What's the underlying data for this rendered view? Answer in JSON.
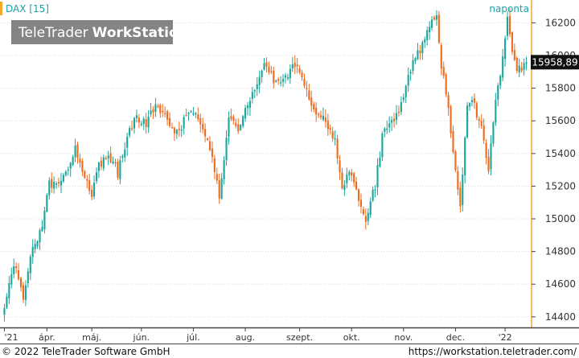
{
  "chart_data": {
    "type": "candlestick",
    "title": "DAX [15]",
    "frequency": "naponta",
    "last_value_label": "15958,89",
    "last_value": 15958.89,
    "ylim": [
      14350,
      16320
    ],
    "yticks": [
      {
        "value": 14400,
        "label": "14400"
      },
      {
        "value": 14600,
        "label": "14600"
      },
      {
        "value": 14800,
        "label": "14800"
      },
      {
        "value": 15000,
        "label": "15000"
      },
      {
        "value": 15200,
        "label": "15200"
      },
      {
        "value": 15400,
        "label": "15400"
      },
      {
        "value": 15600,
        "label": "15600"
      },
      {
        "value": 15800,
        "label": "15800"
      },
      {
        "value": 16000,
        "label": "16000"
      },
      {
        "value": 16200,
        "label": "16200"
      }
    ],
    "xticks": [
      {
        "index": 0,
        "label": "'21"
      },
      {
        "index": 18,
        "label": "ápr."
      },
      {
        "index": 37,
        "label": "máj."
      },
      {
        "index": 58,
        "label": "jún."
      },
      {
        "index": 80,
        "label": "júl."
      },
      {
        "index": 102,
        "label": "aug."
      },
      {
        "index": 125,
        "label": "szept."
      },
      {
        "index": 147,
        "label": "okt."
      },
      {
        "index": 169,
        "label": "nov."
      },
      {
        "index": 191,
        "label": "dec."
      },
      {
        "index": 212,
        "label": "'22"
      }
    ],
    "close_path": [
      [
        0,
        14480
      ],
      [
        4,
        14740
      ],
      [
        8,
        14530
      ],
      [
        12,
        14820
      ],
      [
        16,
        14950
      ],
      [
        19,
        15220
      ],
      [
        22,
        15200
      ],
      [
        26,
        15300
      ],
      [
        30,
        15420
      ],
      [
        34,
        15250
      ],
      [
        37,
        15130
      ],
      [
        40,
        15320
      ],
      [
        44,
        15400
      ],
      [
        48,
        15280
      ],
      [
        52,
        15500
      ],
      [
        56,
        15620
      ],
      [
        60,
        15580
      ],
      [
        64,
        15700
      ],
      [
        68,
        15620
      ],
      [
        72,
        15500
      ],
      [
        76,
        15600
      ],
      [
        80,
        15650
      ],
      [
        83,
        15560
      ],
      [
        87,
        15430
      ],
      [
        91,
        15150
      ],
      [
        95,
        15600
      ],
      [
        99,
        15550
      ],
      [
        103,
        15720
      ],
      [
        106,
        15800
      ],
      [
        110,
        15960
      ],
      [
        114,
        15860
      ],
      [
        118,
        15830
      ],
      [
        122,
        15940
      ],
      [
        126,
        15870
      ],
      [
        129,
        15740
      ],
      [
        132,
        15640
      ],
      [
        136,
        15600
      ],
      [
        140,
        15470
      ],
      [
        143,
        15170
      ],
      [
        146,
        15280
      ],
      [
        150,
        15120
      ],
      [
        153,
        15000
      ],
      [
        157,
        15200
      ],
      [
        160,
        15500
      ],
      [
        164,
        15600
      ],
      [
        168,
        15700
      ],
      [
        172,
        15920
      ],
      [
        176,
        16040
      ],
      [
        180,
        16180
      ],
      [
        183,
        16260
      ],
      [
        185,
        15920
      ],
      [
        187,
        15790
      ],
      [
        190,
        15420
      ],
      [
        193,
        15100
      ],
      [
        196,
        15700
      ],
      [
        199,
        15700
      ],
      [
        202,
        15550
      ],
      [
        205,
        15300
      ],
      [
        208,
        15700
      ],
      [
        211,
        16000
      ],
      [
        213,
        16250
      ],
      [
        216,
        15950
      ],
      [
        219,
        15900
      ],
      [
        221,
        15958.89
      ]
    ],
    "bar_count": 222,
    "colors": {
      "up": "#1aa69a",
      "down": "#f06a1e",
      "accent": "#f3a72b",
      "frame": "#444444"
    }
  },
  "footer": {
    "copyright": "© 2022 TeleTrader Software GmbH",
    "url": "https://workstation.teletrader.com/"
  },
  "logo": {
    "part1": "TeleTrader",
    "part2": "WorkStation"
  }
}
